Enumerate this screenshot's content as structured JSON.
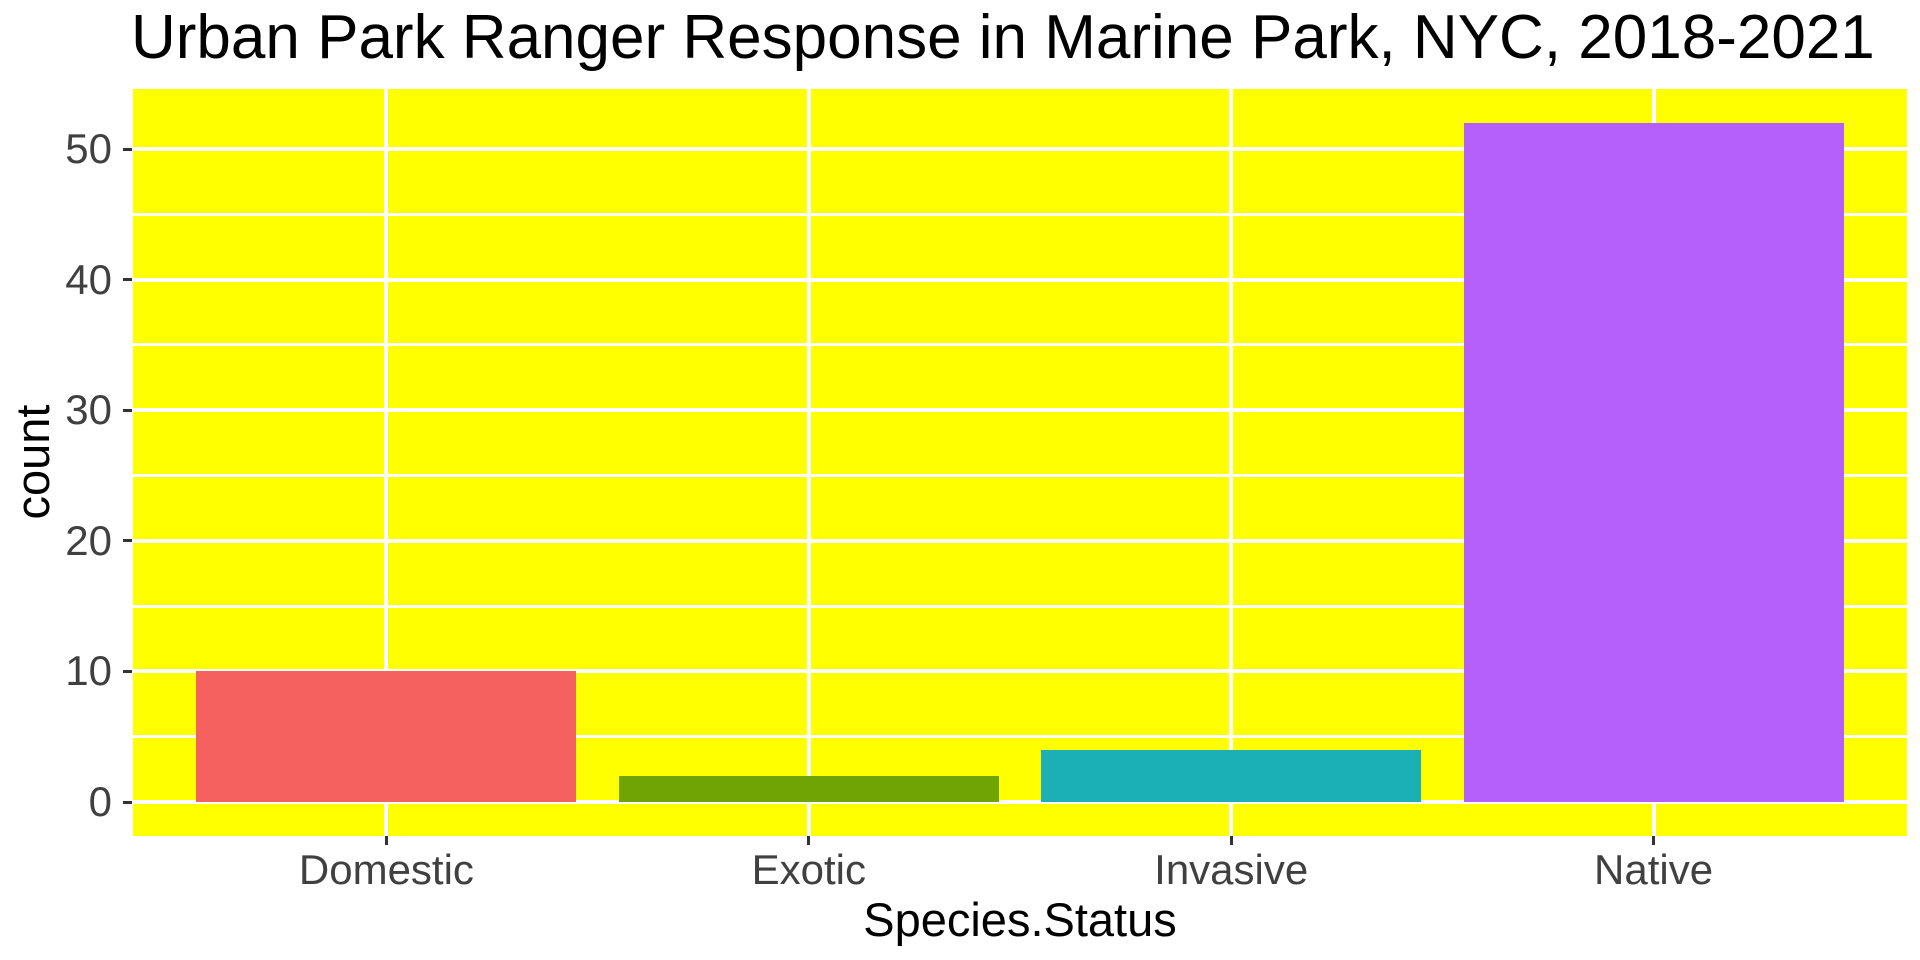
{
  "chart_data": {
    "type": "bar",
    "title": "Urban Park Ranger Response in Marine Park, NYC, 2018-2021",
    "xlabel": "Species.Status",
    "ylabel": "count",
    "categories": [
      "Domestic",
      "Exotic",
      "Invasive",
      "Native"
    ],
    "values": [
      10,
      2,
      4,
      52
    ],
    "y_ticks": [
      0,
      10,
      20,
      30,
      40,
      50
    ],
    "y_minor_ticks": [
      5,
      15,
      25,
      35,
      45
    ],
    "ylim": [
      -2.6,
      54.6
    ],
    "grid": true,
    "legend_position": "none",
    "bar_colors": [
      "#F4615E",
      "#6FA405",
      "#1AB0B5",
      "#B560FB"
    ],
    "panel_background_color": "#FFFF00",
    "gridline_color": "#FFFFFF",
    "tick_label_color": "#404040",
    "title_color": "#000000"
  }
}
